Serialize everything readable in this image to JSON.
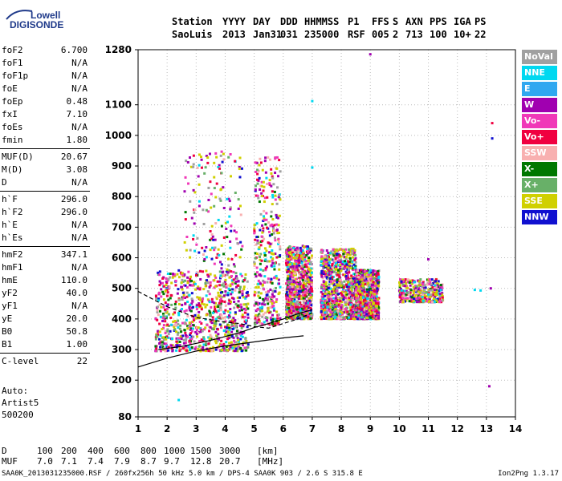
{
  "logo": {
    "brand_top": "Lowell",
    "brand_bottom": "DIGISONDE"
  },
  "header": {
    "labels": [
      "Station",
      "YYYY",
      "DAY",
      "DDD",
      "HHMMSS",
      "P1",
      "FFS",
      "S",
      "AXN",
      "PPS",
      "IGA",
      "PS"
    ],
    "values": [
      "SaoLuis",
      "2013",
      "Jan31",
      "031",
      "235000",
      "RSF",
      "005",
      "2",
      "713",
      "100",
      "10+",
      "22"
    ]
  },
  "params": [
    {
      "name": "foF2",
      "value": "6.700"
    },
    {
      "name": "foF1",
      "value": "N/A"
    },
    {
      "name": "foF1p",
      "value": "N/A"
    },
    {
      "name": "foE",
      "value": "N/A"
    },
    {
      "name": "foEp",
      "value": "0.48"
    },
    {
      "name": "fxI",
      "value": "7.10"
    },
    {
      "name": "foEs",
      "value": "N/A"
    },
    {
      "name": "fmin",
      "value": "1.80"
    },
    {
      "name": "MUF(D)",
      "value": "20.67"
    },
    {
      "name": "M(D)",
      "value": "3.08"
    },
    {
      "name": "D",
      "value": "N/A"
    },
    {
      "name": "h`F",
      "value": "296.0"
    },
    {
      "name": "h`F2",
      "value": "296.0"
    },
    {
      "name": "h`E",
      "value": "N/A"
    },
    {
      "name": "h`Es",
      "value": "N/A"
    },
    {
      "name": "hmF2",
      "value": "347.1"
    },
    {
      "name": "hmF1",
      "value": "N/A"
    },
    {
      "name": "hmE",
      "value": "110.0"
    },
    {
      "name": "yF2",
      "value": "40.0"
    },
    {
      "name": "yF1",
      "value": "N/A"
    },
    {
      "name": "yE",
      "value": "20.0"
    },
    {
      "name": "B0",
      "value": "50.8"
    },
    {
      "name": "B1",
      "value": "1.00"
    },
    {
      "name": "C-level",
      "value": "22"
    }
  ],
  "auto": {
    "line1": "Auto:",
    "line2": "Artist5",
    "line3": "500200"
  },
  "legend": [
    {
      "label": "NoVal",
      "color": "#a0a0a0"
    },
    {
      "label": "NNE",
      "color": "#00d8f0"
    },
    {
      "label": "E",
      "color": "#30a8f0"
    },
    {
      "label": "W",
      "color": "#a000b0"
    },
    {
      "label": "Vo-",
      "color": "#f038b8"
    },
    {
      "label": "Vo+",
      "color": "#f00040"
    },
    {
      "label": "SSW",
      "color": "#f8b0b0"
    },
    {
      "label": "X-",
      "color": "#007800"
    },
    {
      "label": "X+",
      "color": "#68b068"
    },
    {
      "label": "SSE",
      "color": "#d0d000"
    },
    {
      "label": "NNW",
      "color": "#1010d0"
    }
  ],
  "muf_table": {
    "d_label": "D",
    "distances": [
      "100",
      "200",
      "400",
      "600",
      "800",
      "1000",
      "1500",
      "3000"
    ],
    "d_unit": "[km]",
    "muf_label": "MUF",
    "mufs": [
      "7.0",
      "7.1",
      "7.4",
      "7.9",
      "8.7",
      "9.7",
      "12.8",
      "20.7"
    ],
    "muf_unit": "[MHz]"
  },
  "footer": {
    "left": "SAA0K_2013031235000.RSF / 260fx256h 50 kHz 5.0 km / DPS-4 SAA0K 903 / 2.6 S 315.8 E",
    "right": "Ion2Png 1.3.17"
  },
  "chart_data": {
    "type": "scatter",
    "xlim": [
      1,
      14
    ],
    "ylim": [
      80,
      1280
    ],
    "x_ticks": [
      1,
      2,
      3,
      4,
      5,
      6,
      7,
      8,
      9,
      10,
      11,
      12,
      13,
      14
    ],
    "y_ticks": [
      80,
      200,
      300,
      400,
      500,
      600,
      700,
      800,
      900,
      1000,
      1100,
      1280
    ],
    "grid": true,
    "legend_position": "right",
    "clusters": [
      {
        "x": [
          1.6,
          4.8
        ],
        "y": [
          295,
          560
        ],
        "density": "high"
      },
      {
        "x": [
          2.6,
          4.6
        ],
        "y": [
          560,
          950
        ],
        "density": "low"
      },
      {
        "x": [
          5.0,
          5.9
        ],
        "y": [
          380,
          930
        ],
        "density": "medium"
      },
      {
        "x": [
          6.1,
          7.0
        ],
        "y": [
          400,
          640
        ],
        "density": "high"
      },
      {
        "x": [
          7.3,
          8.5
        ],
        "y": [
          400,
          630
        ],
        "density": "high"
      },
      {
        "x": [
          8.5,
          9.3
        ],
        "y": [
          400,
          560
        ],
        "density": "high"
      },
      {
        "x": [
          10.0,
          11.5
        ],
        "y": [
          455,
          530
        ],
        "density": "medium"
      }
    ],
    "profile_curve": {
      "x": [
        1.0,
        2.0,
        3.0,
        4.0,
        5.0,
        6.0,
        6.7
      ],
      "y": [
        243,
        272,
        295,
        312,
        325,
        338,
        345
      ]
    },
    "trace_solid": {
      "x": [
        1.7,
        2.5,
        3.5,
        4.5,
        5.0,
        5.5,
        6.0,
        6.6,
        7.0
      ],
      "y": [
        300,
        310,
        330,
        355,
        372,
        385,
        400,
        420,
        430
      ]
    },
    "trace_dashed": {
      "x": [
        1.0,
        2.0,
        3.0,
        4.0,
        4.5,
        5.0,
        5.5,
        6.0,
        6.5,
        7.0
      ],
      "y": [
        490,
        440,
        405,
        390,
        385,
        375,
        370,
        385,
        400,
        420
      ]
    },
    "outliers": [
      {
        "x": 9.0,
        "y": 1265,
        "color": "#a000b0"
      },
      {
        "x": 7.0,
        "y": 1112,
        "color": "#00d8f0"
      },
      {
        "x": 7.0,
        "y": 895,
        "color": "#00d8f0"
      },
      {
        "x": 13.2,
        "y": 1040,
        "color": "#f00040"
      },
      {
        "x": 13.2,
        "y": 990,
        "color": "#1010d0"
      },
      {
        "x": 2.4,
        "y": 135,
        "color": "#00d8f0"
      },
      {
        "x": 13.1,
        "y": 180,
        "color": "#a000b0"
      },
      {
        "x": 12.8,
        "y": 493,
        "color": "#00d8f0"
      },
      {
        "x": 13.15,
        "y": 500,
        "color": "#a000b0"
      },
      {
        "x": 11.0,
        "y": 595,
        "color": "#a000b0"
      },
      {
        "x": 12.6,
        "y": 495,
        "color": "#00d8f0"
      }
    ]
  }
}
